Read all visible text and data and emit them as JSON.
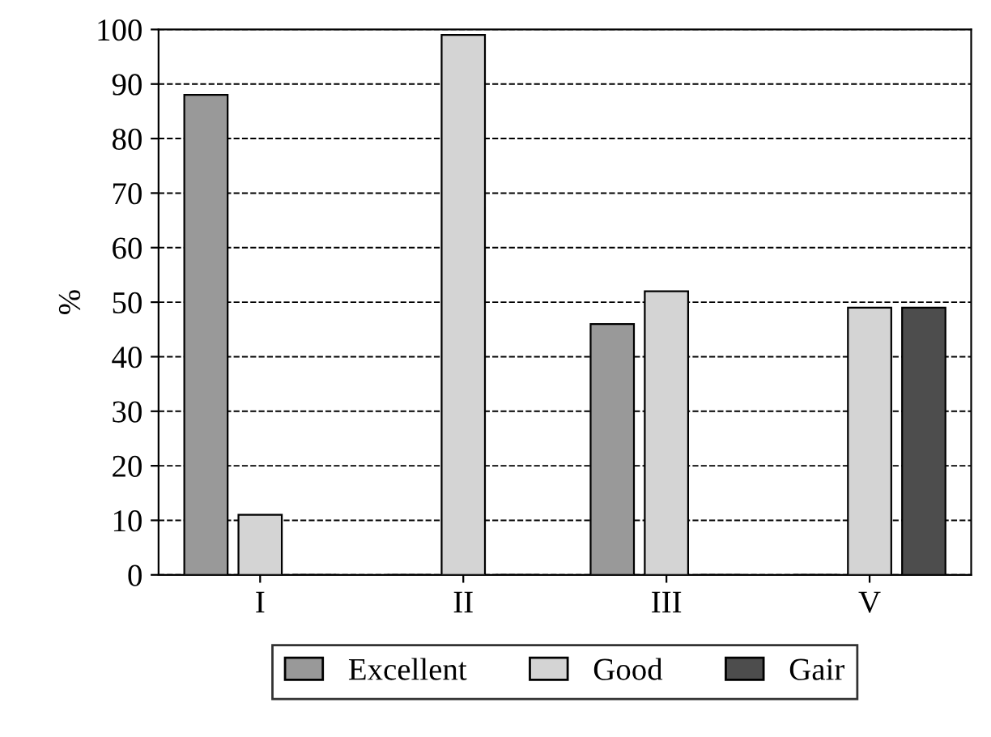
{
  "chart_data": {
    "type": "bar",
    "ylabel": "%",
    "categories": [
      "I",
      "II",
      "III",
      "V"
    ],
    "series": [
      {
        "name": "Excellent",
        "color": "#999999",
        "values": [
          88,
          0,
          46,
          0
        ]
      },
      {
        "name": "Good",
        "color": "#d4d4d4",
        "values": [
          11,
          99,
          52,
          49
        ]
      },
      {
        "name": "Gair",
        "color": "#4d4d4d",
        "values": [
          0,
          0,
          0,
          49
        ]
      }
    ],
    "ylim": [
      0,
      100
    ],
    "yticks": [
      0,
      10,
      20,
      30,
      40,
      50,
      60,
      70,
      80,
      90,
      100
    ],
    "grid": "y",
    "legend": "bottom"
  }
}
